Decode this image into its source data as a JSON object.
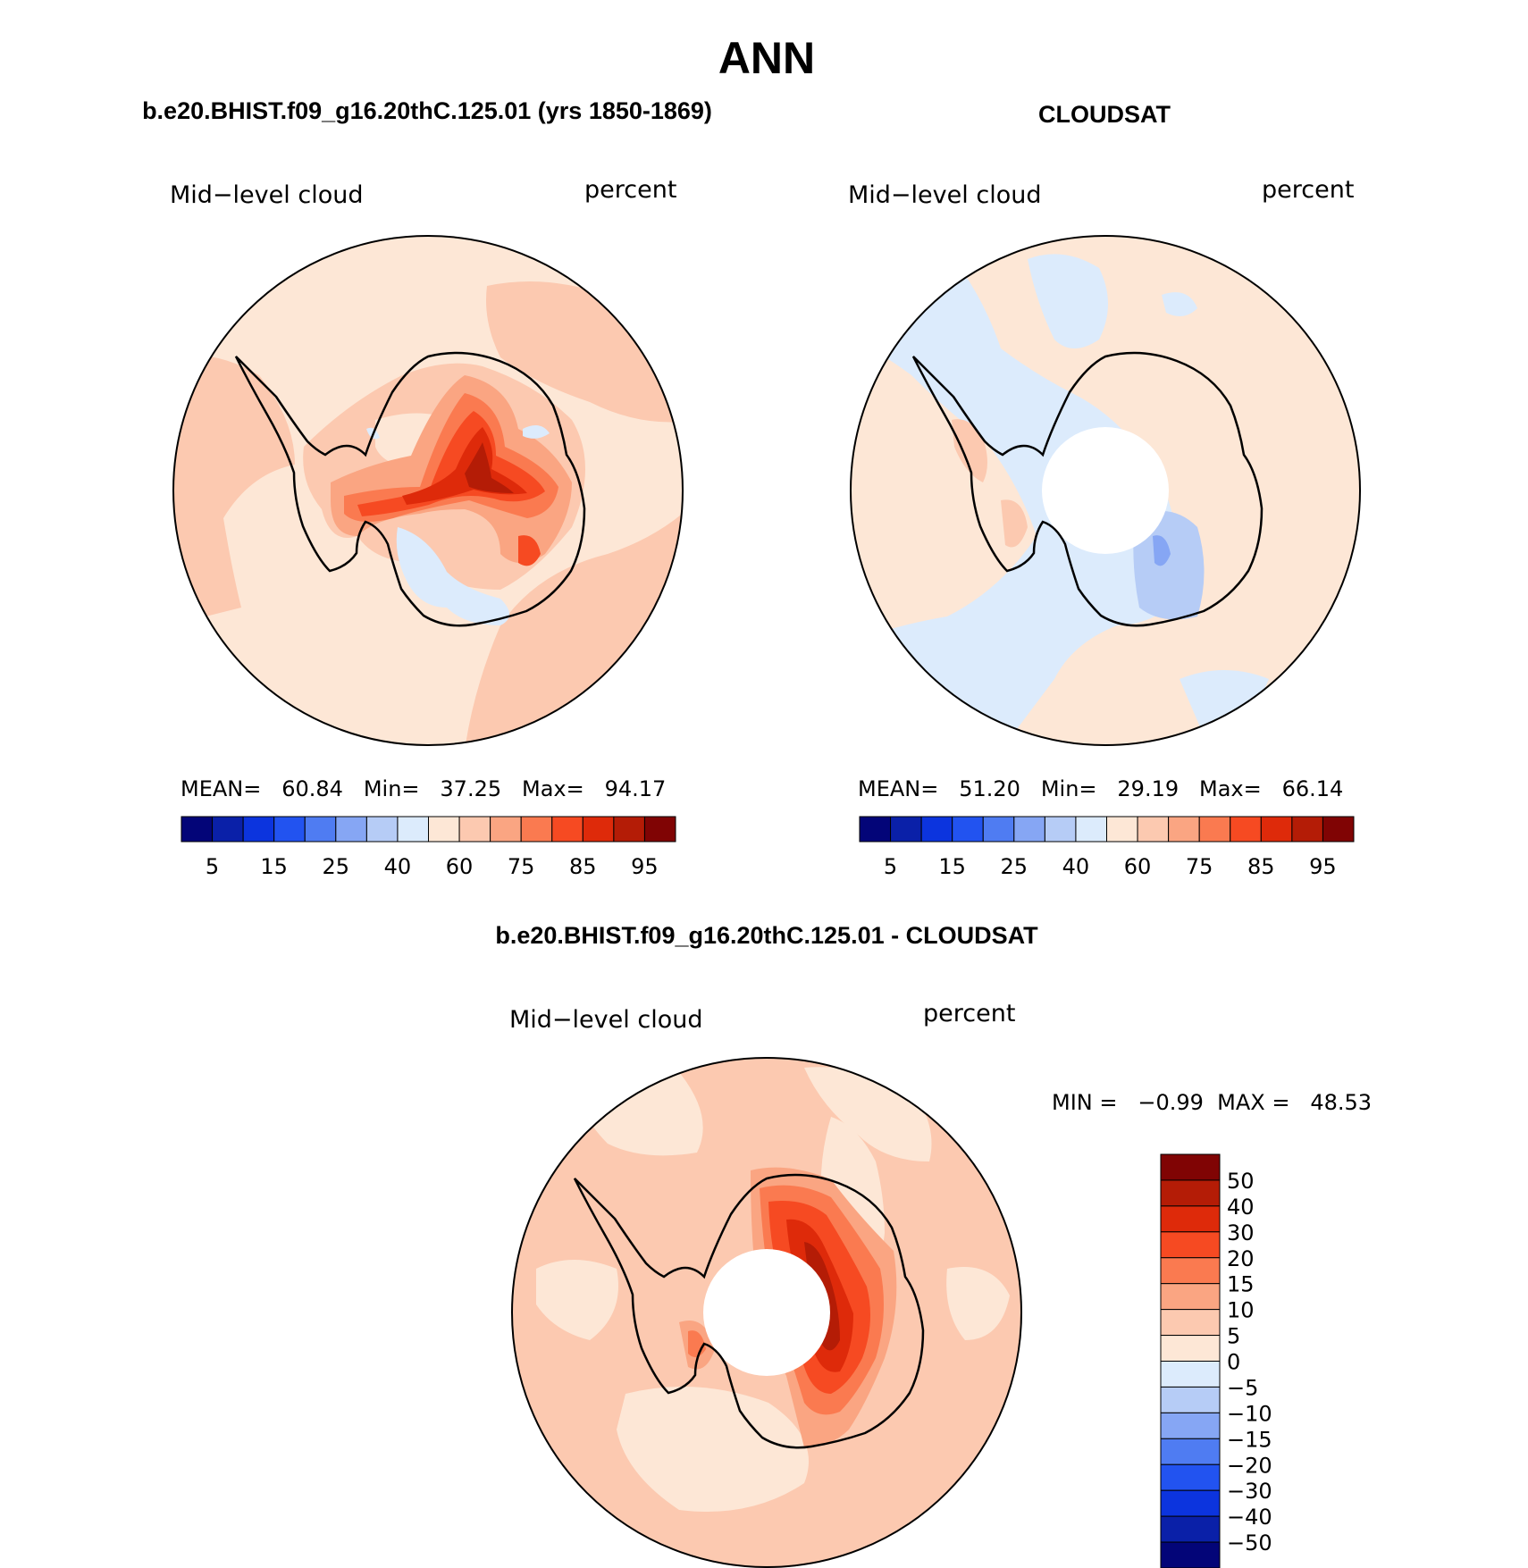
{
  "figure": {
    "season": "ANN",
    "title_left": "b.e20.BHIST.f09_g16.20thC.125.01 (yrs 1850-1869)",
    "title_right": "CLOUDSAT",
    "title_diff": "b.e20.BHIST.f09_g16.20thC.125.01 - CLOUDSAT"
  },
  "panels": {
    "model": {
      "variable": "Mid−level cloud",
      "units": "percent",
      "stats_line": "MEAN=   60.84   Min=   37.25   Max=   94.17",
      "stats": {
        "mean": 60.84,
        "min": 37.25,
        "max": 94.17
      }
    },
    "obs": {
      "variable": "Mid−level cloud",
      "units": "percent",
      "stats_line": "MEAN=   51.20   Min=   29.19   Max=   66.14",
      "stats": {
        "mean": 51.2,
        "min": 29.19,
        "max": 66.14
      }
    },
    "diff": {
      "variable": "Mid−level cloud",
      "units": "percent",
      "stats_line": "MIN =   −0.99  MAX =   48.53",
      "stats": {
        "min": -0.99,
        "max": 48.53
      }
    }
  },
  "colorbars": {
    "abs": {
      "colors": [
        "#030578",
        "#0A20A8",
        "#0C34DE",
        "#2253F0",
        "#4F7CF2",
        "#86A6F4",
        "#B6CCF6",
        "#DCEBFC",
        "#FDE7D6",
        "#FCC9B0",
        "#FAA582",
        "#FA7A50",
        "#F64A22",
        "#DE2A0A",
        "#B41C06",
        "#800404"
      ],
      "labels": [
        "5",
        "15",
        "25",
        "40",
        "60",
        "75",
        "85",
        "95"
      ]
    },
    "diff": {
      "colors": [
        "#800404",
        "#B41C06",
        "#DE2A0A",
        "#F64A22",
        "#FA7A50",
        "#FAA582",
        "#FCC9B0",
        "#FDE7D6",
        "#DCEBFC",
        "#B6CCF6",
        "#86A6F4",
        "#4F7CF2",
        "#2253F0",
        "#0C34DE",
        "#0A20A8",
        "#030578"
      ],
      "labels": [
        "50",
        "40",
        "30",
        "20",
        "15",
        "10",
        "5",
        "0",
        "−5",
        "−10",
        "−15",
        "−20",
        "−30",
        "−40",
        "−50"
      ]
    }
  },
  "colors": {
    "c_neg5": "#DCEBFC",
    "c_neg10": "#B6CCF6",
    "c_neg15": "#86A6F4",
    "c_0_5": "#FDE7D6",
    "c_5_10": "#FCC9B0",
    "c_10_15": "#FAA582",
    "c_15_20": "#FA7A50",
    "c_20_30": "#F64A22",
    "c_30_40": "#DE2A0A",
    "c_40_50": "#B41C06",
    "c_50p": "#800404",
    "abs_55_60": "#DCEBFC",
    "abs_60_70": "#FDE7D6",
    "abs_70_75": "#FCC9B0",
    "abs_75_80": "#FAA582",
    "abs_80_85": "#FA7A50",
    "abs_85_90": "#F64A22",
    "abs_90_95": "#DE2A0A",
    "abs_95p": "#B41C06",
    "abs_50_55": "#B6CCF6",
    "abs_45_50": "#86A6F4"
  }
}
